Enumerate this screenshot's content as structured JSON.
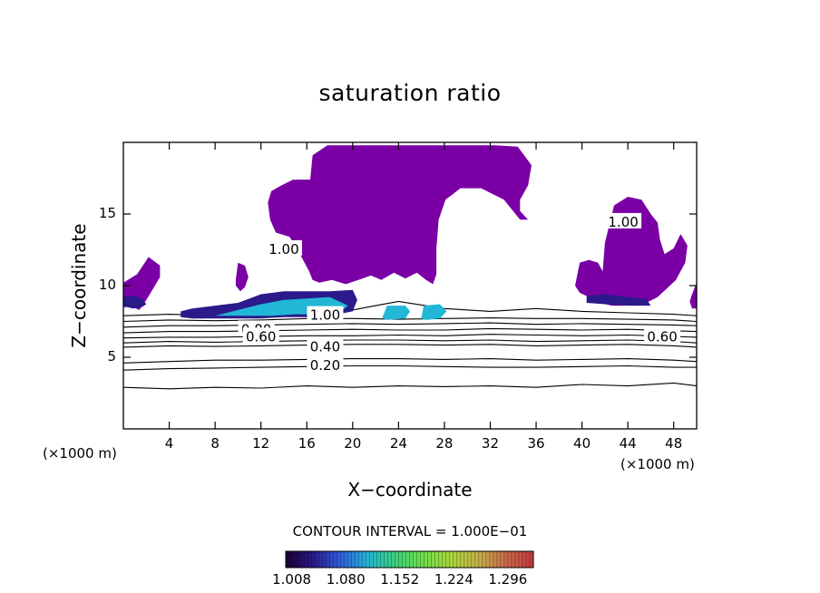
{
  "chart_data": {
    "type": "heatmap",
    "title": "saturation ratio",
    "xlabel": "X−coordinate",
    "ylabel": "Z−coordinate",
    "x_unit_left": "(×1000 m)",
    "x_unit_right": "(×1000 m)",
    "xlim": [
      0,
      50
    ],
    "ylim": [
      0,
      20
    ],
    "x_ticks": [
      4,
      8,
      12,
      16,
      20,
      24,
      28,
      32,
      36,
      40,
      44,
      48
    ],
    "y_ticks": [
      5,
      10,
      15
    ],
    "contour_interval_text": "CONTOUR INTERVAL = 1.000E−01",
    "colorbar_ticks": [
      "1.008",
      "1.080",
      "1.152",
      "1.224",
      "1.296"
    ],
    "colorbar_range": [
      1.0,
      1.33
    ],
    "colors": {
      "cloud": "#7a00a6",
      "colorbar": [
        "#1a0030",
        "#2a1a8a",
        "#2f5fe0",
        "#22b7d6",
        "#3cd27a",
        "#6ee04a",
        "#a8d83a",
        "#c7b24a",
        "#c96a4a",
        "#c43a3a"
      ]
    },
    "contour_labels": [
      {
        "text": "1.00",
        "x": 14.0,
        "y": 12.6
      },
      {
        "text": "1.00",
        "x": 17.6,
        "y": 8.0
      },
      {
        "text": "0.80",
        "x": 11.6,
        "y": 7.0
      },
      {
        "text": "0.60",
        "x": 12.0,
        "y": 6.5
      },
      {
        "text": "0.40",
        "x": 17.6,
        "y": 5.8
      },
      {
        "text": "0.20",
        "x": 17.6,
        "y": 4.5
      },
      {
        "text": "0.60",
        "x": 47.0,
        "y": 6.5
      },
      {
        "text": "1.00",
        "x": 43.6,
        "y": 14.5
      }
    ],
    "contour_lines": [
      {
        "level": 0.1,
        "x": [
          0,
          4,
          8,
          12,
          16,
          20,
          24,
          28,
          32,
          36,
          40,
          44,
          48,
          50
        ],
        "y": [
          2.9,
          2.8,
          2.9,
          2.85,
          3.0,
          2.9,
          3.0,
          2.95,
          3.0,
          2.9,
          3.1,
          3.0,
          3.2,
          3.0
        ]
      },
      {
        "level": 0.2,
        "x": [
          0,
          4,
          8,
          12,
          16,
          20,
          24,
          28,
          32,
          36,
          40,
          44,
          48,
          50
        ],
        "y": [
          4.1,
          4.2,
          4.25,
          4.3,
          4.35,
          4.4,
          4.4,
          4.35,
          4.3,
          4.3,
          4.35,
          4.4,
          4.3,
          4.3
        ]
      },
      {
        "level": 0.3,
        "x": [
          0,
          4,
          8,
          12,
          16,
          20,
          24,
          28,
          32,
          36,
          40,
          44,
          48,
          50
        ],
        "y": [
          4.6,
          4.7,
          4.8,
          4.8,
          4.85,
          4.9,
          4.9,
          4.85,
          4.9,
          4.8,
          4.85,
          4.9,
          4.8,
          4.7
        ]
      },
      {
        "level": 0.4,
        "x": [
          0,
          4,
          8,
          12,
          16,
          20,
          24,
          28,
          32,
          36,
          40,
          44,
          48,
          50
        ],
        "y": [
          5.7,
          5.8,
          5.75,
          5.8,
          5.85,
          5.9,
          5.9,
          5.85,
          5.9,
          5.8,
          5.85,
          5.9,
          5.8,
          5.7
        ]
      },
      {
        "level": 0.5,
        "x": [
          0,
          4,
          8,
          12,
          16,
          20,
          24,
          28,
          32,
          36,
          40,
          44,
          48,
          50
        ],
        "y": [
          6.0,
          6.1,
          6.05,
          6.1,
          6.15,
          6.2,
          6.2,
          6.15,
          6.2,
          6.1,
          6.15,
          6.2,
          6.1,
          6.0
        ]
      },
      {
        "level": 0.6,
        "x": [
          0,
          4,
          8,
          12,
          16,
          20,
          24,
          28,
          32,
          36,
          40,
          44,
          48,
          50
        ],
        "y": [
          6.35,
          6.4,
          6.4,
          6.45,
          6.5,
          6.5,
          6.55,
          6.5,
          6.6,
          6.55,
          6.5,
          6.55,
          6.45,
          6.4
        ]
      },
      {
        "level": 0.7,
        "x": [
          0,
          4,
          8,
          12,
          16,
          20,
          24,
          28,
          32,
          36,
          40,
          44,
          48,
          50
        ],
        "y": [
          6.7,
          6.8,
          6.8,
          6.85,
          6.9,
          6.95,
          6.9,
          6.9,
          7.0,
          6.95,
          6.9,
          6.95,
          6.85,
          6.8
        ]
      },
      {
        "level": 0.8,
        "x": [
          0,
          4,
          8,
          12,
          16,
          20,
          24,
          28,
          32,
          36,
          40,
          44,
          48,
          50
        ],
        "y": [
          7.1,
          7.2,
          7.2,
          7.25,
          7.3,
          7.35,
          7.3,
          7.35,
          7.4,
          7.3,
          7.35,
          7.3,
          7.25,
          7.2
        ]
      },
      {
        "level": 0.9,
        "x": [
          0,
          4,
          8,
          12,
          16,
          20,
          24,
          28,
          32,
          36,
          40,
          44,
          48,
          50
        ],
        "y": [
          7.5,
          7.6,
          7.55,
          7.6,
          7.7,
          7.7,
          7.65,
          7.7,
          7.75,
          7.7,
          7.7,
          7.65,
          7.6,
          7.5
        ]
      },
      {
        "level": 1.0,
        "x": [
          0,
          4,
          8,
          12,
          16,
          20,
          22,
          24,
          28,
          32,
          36,
          40,
          44,
          48,
          50
        ],
        "y": [
          7.9,
          8.0,
          7.9,
          8.0,
          8.1,
          8.3,
          8.6,
          8.9,
          8.4,
          8.2,
          8.4,
          8.2,
          8.1,
          8.0,
          7.9
        ]
      }
    ],
    "regions": [
      {
        "name": "tall anvil cloud",
        "level": 1.0,
        "x": [
          16.3,
          16.5,
          17.8,
          19.2,
          20.5,
          21.6,
          23.2,
          25.6,
          27.7,
          30.0,
          32.4,
          34.4,
          35.6,
          35.3,
          34.6,
          34.6,
          35.3,
          34.6,
          33.2,
          31.2,
          29.4,
          28.1,
          27.5,
          27.3,
          27.3,
          27.0,
          26.4,
          25.6,
          24.6,
          23.6,
          22.5,
          21.6,
          20.5,
          19.4,
          18.2,
          17.1,
          16.5,
          16.2,
          15.4,
          14.5,
          13.3,
          12.8,
          12.6,
          12.9,
          13.8,
          14.8,
          15.9
        ],
        "y": [
          17.4,
          19.1,
          19.8,
          19.8,
          19.8,
          19.8,
          19.8,
          19.8,
          19.8,
          19.8,
          19.8,
          19.7,
          18.4,
          17.0,
          16.0,
          15.2,
          14.6,
          14.6,
          16.0,
          16.8,
          16.8,
          16.0,
          14.6,
          12.6,
          10.8,
          10.1,
          10.4,
          10.9,
          10.5,
          10.9,
          10.4,
          10.7,
          10.4,
          10.1,
          10.4,
          10.2,
          10.4,
          11.0,
          12.2,
          13.4,
          13.7,
          14.6,
          15.8,
          16.6,
          17.0,
          17.4,
          17.4
        ]
      },
      {
        "name": "left edge cloud",
        "level": 1.0,
        "x": [
          0,
          1.2,
          2.2,
          3.2,
          3.2,
          2.6,
          2.0,
          1.4,
          0.8,
          0
        ],
        "y": [
          10.2,
          10.8,
          12.0,
          11.4,
          10.6,
          9.8,
          9.0,
          8.3,
          8.5,
          8.5
        ]
      },
      {
        "name": "small cloud x10",
        "level": 1.0,
        "x": [
          9.8,
          10.0,
          10.6,
          10.9,
          10.6,
          10.2,
          9.8
        ],
        "y": [
          10.4,
          11.6,
          11.4,
          10.6,
          9.9,
          9.6,
          10.0
        ]
      },
      {
        "name": "right tall cloud",
        "level": 1.0,
        "x": [
          39.4,
          39.8,
          40.6,
          41.4,
          41.8,
          42.0,
          42.8,
          44.0,
          45.2,
          46.0,
          46.6,
          46.8,
          47.2,
          48.0,
          48.6,
          49.2,
          49.0,
          48.2,
          47.4,
          46.6,
          45.6,
          44.6,
          43.6,
          42.6,
          41.6,
          40.6,
          39.8,
          39.4
        ],
        "y": [
          10.0,
          11.6,
          11.8,
          11.6,
          11.0,
          13.0,
          15.6,
          16.2,
          16.0,
          15.0,
          14.4,
          13.2,
          12.2,
          12.6,
          13.6,
          12.8,
          11.6,
          10.4,
          9.8,
          9.2,
          8.8,
          8.7,
          8.6,
          8.6,
          8.8,
          9.2,
          9.5,
          10.0
        ]
      },
      {
        "name": "right edge sliver",
        "level": 1.0,
        "x": [
          49.6,
          50.0,
          50.0,
          49.6,
          49.4
        ],
        "y": [
          9.4,
          10.2,
          8.4,
          8.4,
          8.9
        ]
      },
      {
        "name": "low cloud band",
        "level": 1.05,
        "x": [
          5.0,
          6.0,
          8.0,
          10.0,
          12.0,
          14.0,
          16.0,
          18.0,
          20.0,
          20.4,
          20.0,
          18.0,
          16.0,
          14.0,
          12.0,
          10.0,
          8.0,
          6.0,
          5.0
        ],
        "y": [
          8.2,
          8.4,
          8.6,
          8.8,
          9.4,
          9.6,
          9.6,
          9.6,
          9.7,
          9.0,
          8.2,
          7.9,
          7.8,
          7.8,
          7.7,
          7.7,
          7.7,
          7.7,
          7.8
        ]
      },
      {
        "name": "low cloud band core",
        "level": 1.12,
        "x": [
          8.0,
          10.0,
          12.0,
          14.0,
          16.0,
          18.0,
          19.6,
          19.0,
          17.0,
          15.0,
          13.0,
          11.0,
          9.0,
          8.0
        ],
        "y": [
          7.9,
          8.3,
          8.7,
          9.0,
          9.1,
          9.2,
          8.6,
          8.2,
          8.0,
          8.0,
          7.9,
          7.9,
          7.9,
          7.9
        ]
      },
      {
        "name": "mid cloud x23",
        "level": 1.1,
        "x": [
          22.6,
          23.0,
          24.6,
          25.0,
          24.6,
          23.0,
          22.6
        ],
        "y": [
          7.8,
          8.6,
          8.6,
          8.2,
          7.7,
          7.6,
          7.7
        ]
      },
      {
        "name": "mid cloud x27",
        "level": 1.1,
        "x": [
          26.0,
          26.2,
          27.6,
          28.2,
          27.6,
          26.4,
          26.0
        ],
        "y": [
          7.8,
          8.6,
          8.7,
          8.2,
          7.7,
          7.6,
          7.7
        ]
      },
      {
        "name": "right low band",
        "level": 1.05,
        "x": [
          40.4,
          42.0,
          44.0,
          45.6,
          46.0,
          44.0,
          42.0,
          40.4
        ],
        "y": [
          9.3,
          9.4,
          9.2,
          9.1,
          8.6,
          8.6,
          8.7,
          8.8
        ]
      },
      {
        "name": "left low band",
        "level": 1.05,
        "x": [
          0.0,
          0.8,
          1.6,
          2.0,
          1.6,
          0.8,
          0.0
        ],
        "y": [
          9.2,
          9.3,
          9.1,
          8.7,
          8.5,
          8.4,
          8.6
        ]
      }
    ]
  }
}
